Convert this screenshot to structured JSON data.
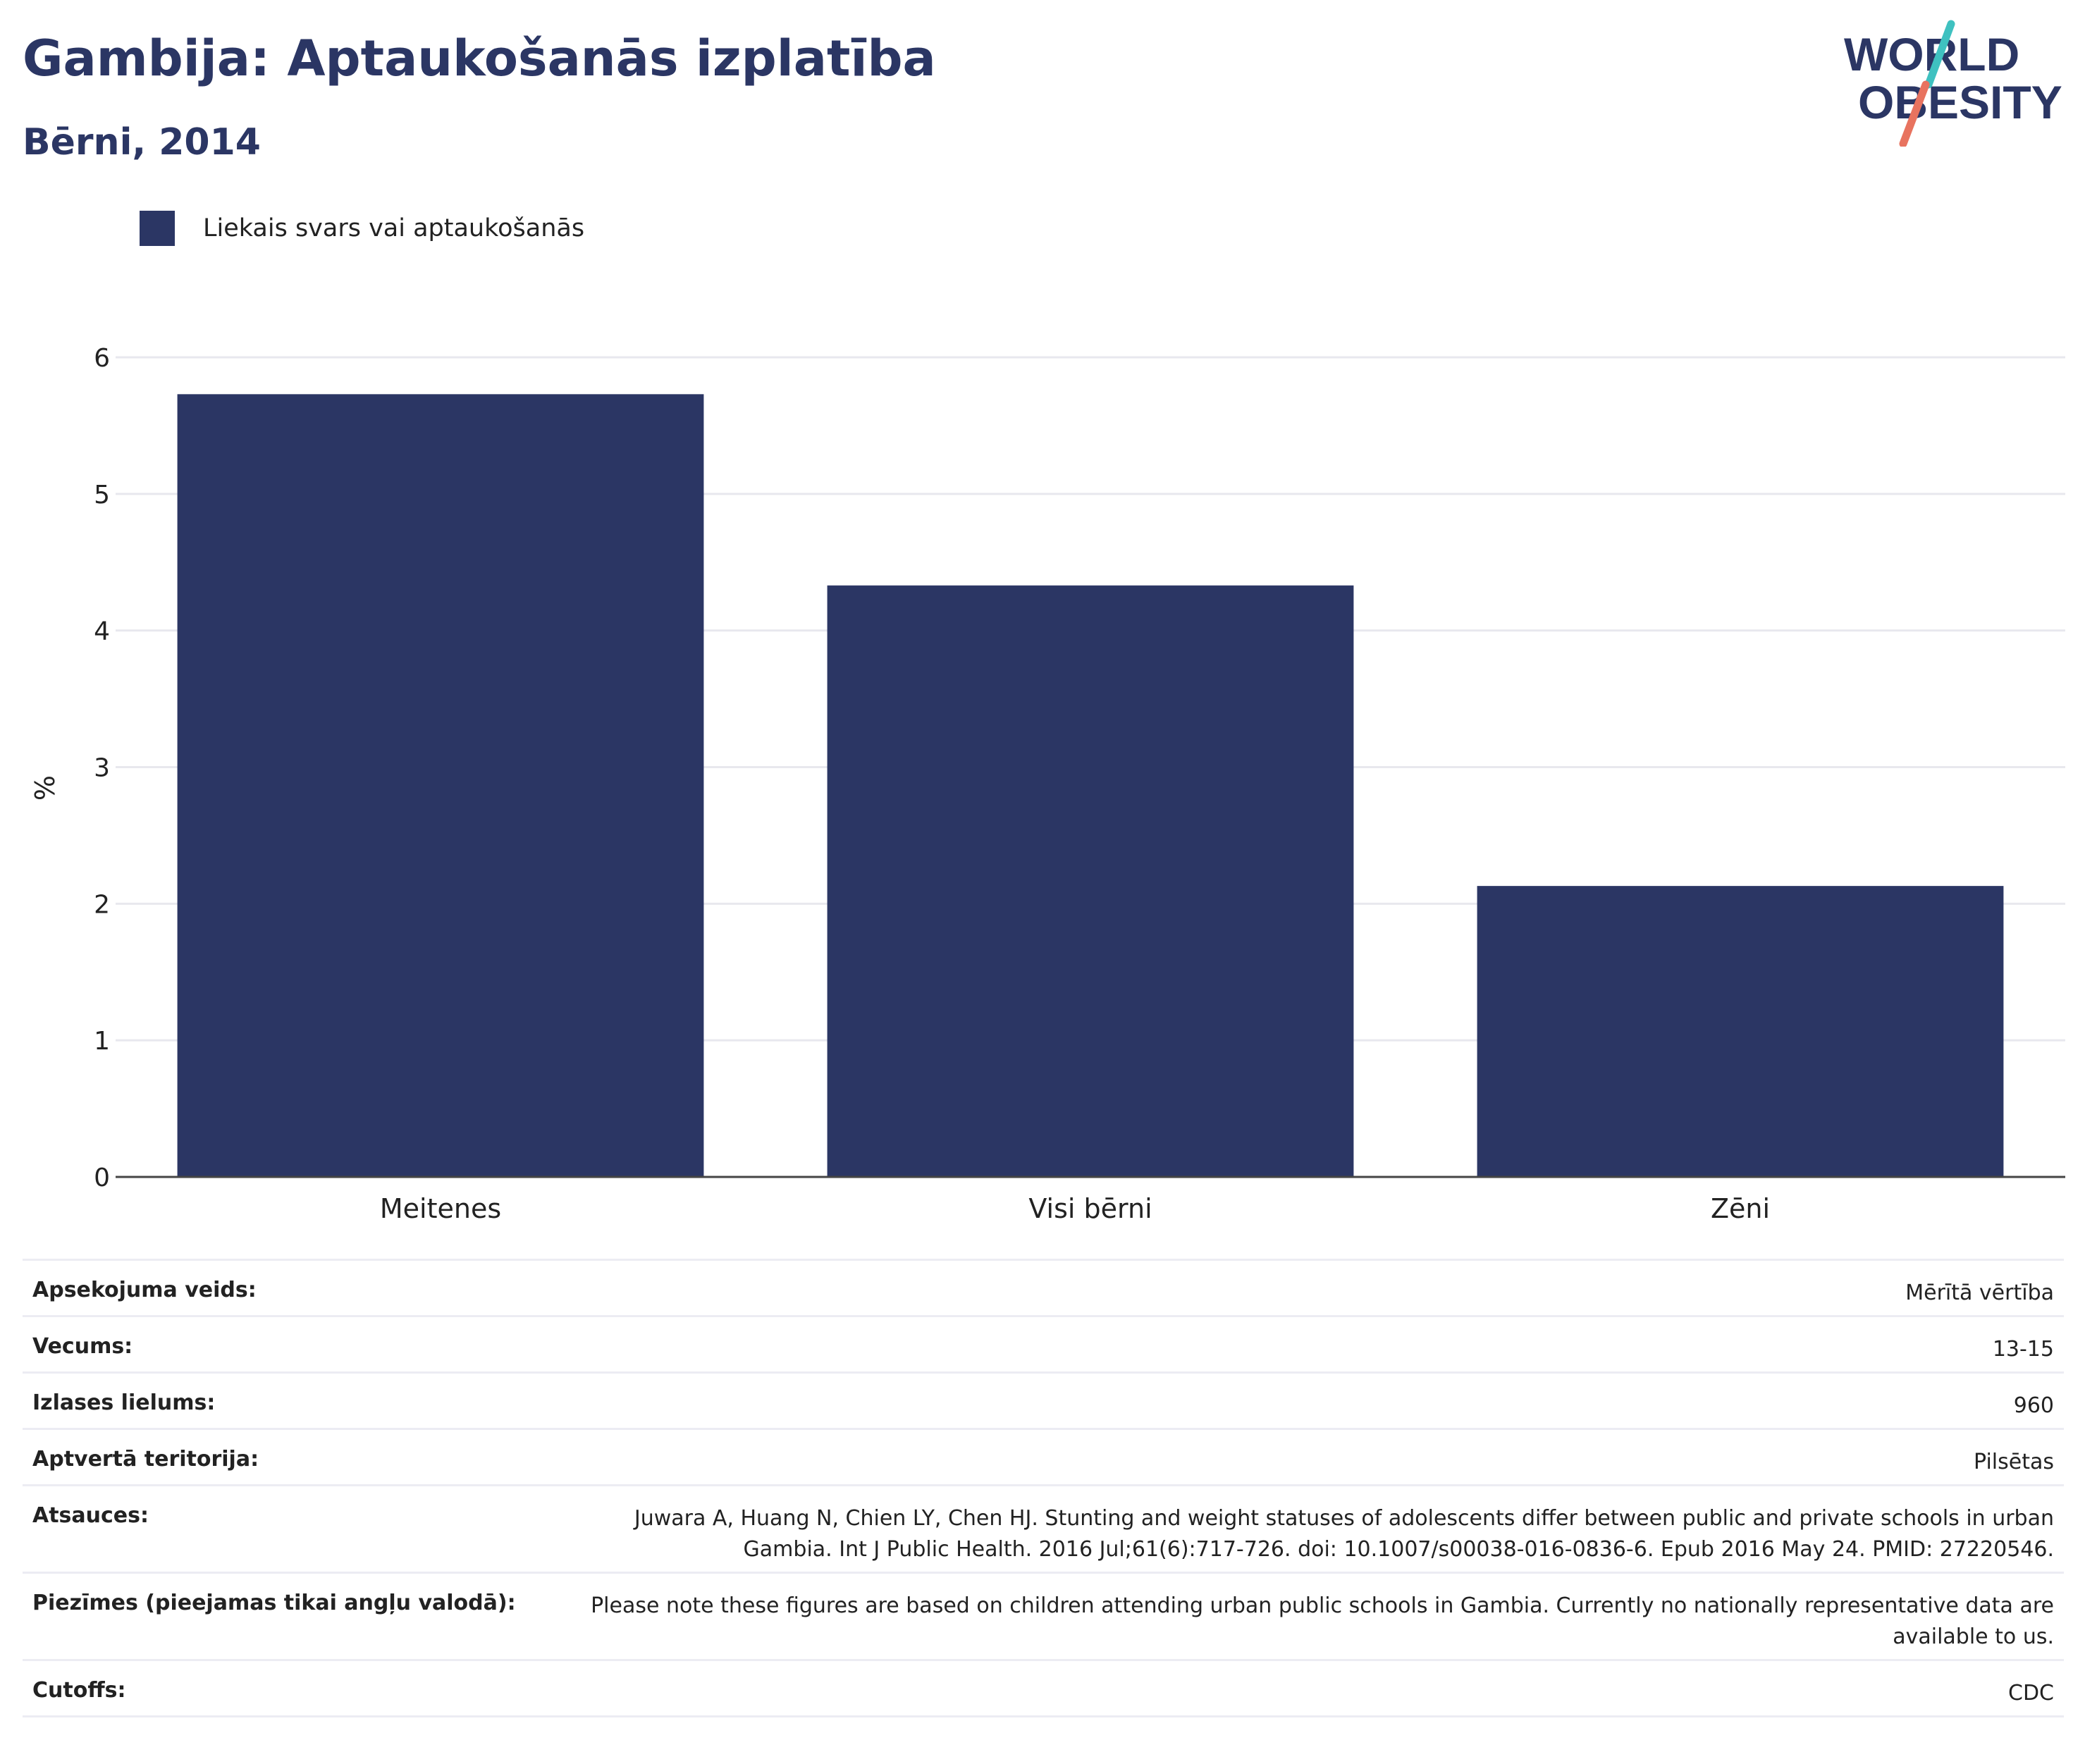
{
  "header": {
    "title": "Gambija: Aptaukošanās izplatība",
    "subtitle": "Bērni, 2014"
  },
  "logo": {
    "line1": "WORLD",
    "line2": "OBESITY"
  },
  "colors": {
    "bar": "#2b3664",
    "title": "#2b3664",
    "gridline": "#e8e8ee",
    "logo_teal": "#3fc1c0",
    "logo_coral": "#e8735f"
  },
  "chart_data": {
    "type": "bar",
    "categories": [
      "Meitenes",
      "Visi bērni",
      "Zēni"
    ],
    "series": [
      {
        "name": "Liekais svars vai aptaukošanās",
        "values": [
          5.73,
          4.33,
          2.13
        ]
      }
    ],
    "ylabel": "%",
    "xlabel": "",
    "ylim": [
      0,
      6
    ],
    "yticks": [
      0,
      1,
      2,
      3,
      4,
      5,
      6
    ],
    "grid": true,
    "legend_position": "top-left"
  },
  "info": [
    {
      "label": "Apsekojuma veids:",
      "value": "Mērītā vērtība"
    },
    {
      "label": "Vecums:",
      "value": "13-15"
    },
    {
      "label": "Izlases lielums:",
      "value": "960"
    },
    {
      "label": "Aptvertā teritorija:",
      "value": "Pilsētas"
    },
    {
      "label": "Atsauces:",
      "value": "Juwara A, Huang N, Chien LY, Chen HJ. Stunting and weight statuses of adolescents differ between public and private schools in urban Gambia. Int J Public Health. 2016 Jul;61(6):717-726. doi: 10.1007/s00038-016-0836-6. Epub 2016 May 24. PMID: 27220546."
    },
    {
      "label": "Piezīmes (pieejamas tikai angļu valodā):",
      "value": "Please note these figures are based on children attending urban public schools in Gambia. Currently no nationally representative data are available to us."
    },
    {
      "label": "Cutoffs:",
      "value": "CDC"
    }
  ]
}
